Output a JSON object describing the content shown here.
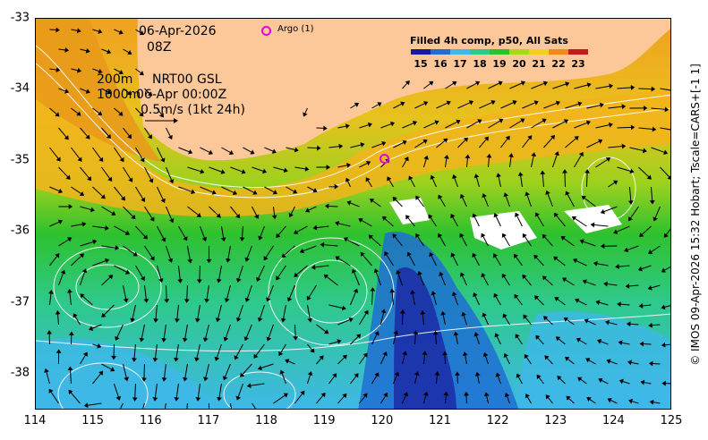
{
  "header": {
    "date": "06-Apr-2026",
    "time": "08Z",
    "depth_top": "200m",
    "depth_bottom": "1000m",
    "model": "NRT00 GSL",
    "model_time": "06-Apr 00:00Z",
    "vector_scale": "0.5m/s (1kt 24h)"
  },
  "legend": {
    "argo_label": "Argo (1)",
    "colorbar_title": "Filled 4h comp, p50, All Sats",
    "ticks": [
      "15",
      "16",
      "17",
      "18",
      "19",
      "20",
      "21",
      "22",
      "23"
    ],
    "colors": [
      "#1a1a9e",
      "#1f6fd1",
      "#3fb8e8",
      "#2ec98a",
      "#2ec12e",
      "#a7d91a",
      "#f2d21b",
      "#f08a1b",
      "#c41a1a"
    ]
  },
  "axes": {
    "x_ticks": [
      "114",
      "115",
      "116",
      "117",
      "118",
      "119",
      "120",
      "121",
      "122",
      "123",
      "124",
      "125"
    ],
    "y_ticks": [
      "-33",
      "-34",
      "-35",
      "-36",
      "-37",
      "-38"
    ]
  },
  "credit": "© IMOS 09-Apr-2026 15:32 Hobart; Tscale=CARS+[-1 1]",
  "colors": {
    "land": "#fcc89a",
    "argo_marker": "#e600e6"
  }
}
